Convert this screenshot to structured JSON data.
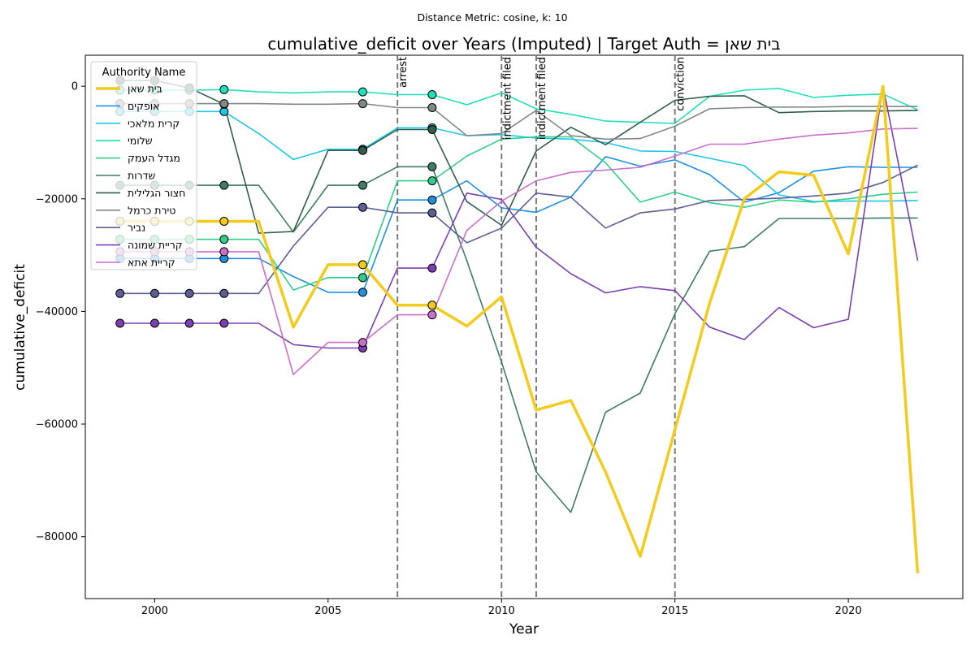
{
  "chart_data": {
    "type": "line",
    "suptitle": "Distance Metric: cosine, k: 10",
    "title": "cumulative_deficit over Years (Imputed) | Target Auth = בית שאן",
    "xlabel": "Year",
    "ylabel": "cumulative_deficit",
    "xlim": [
      1998,
      2023.3
    ],
    "ylim": [
      -91000,
      5500
    ],
    "xticks": [
      2000,
      2005,
      2010,
      2015,
      2020
    ],
    "yticks": [
      0,
      -20000,
      -40000,
      -60000,
      -80000
    ],
    "legend_title": "Authority Name",
    "legend_position": "top-left",
    "grid": false,
    "events": [
      {
        "year": 2007,
        "label": "arrest"
      },
      {
        "year": 2010,
        "label": "indictment filed"
      },
      {
        "year": 2011,
        "label": "indictment filed"
      },
      {
        "year": 2015,
        "label": "conviction"
      }
    ],
    "x": [
      1999,
      2000,
      2001,
      2002,
      2003,
      2004,
      2005,
      2006,
      2007,
      2008,
      2009,
      2010,
      2011,
      2012,
      2013,
      2014,
      2015,
      2016,
      2017,
      2018,
      2019,
      2020,
      2021,
      2022
    ],
    "series": [
      {
        "name": "בית שאן",
        "color": "#f2cb1d",
        "target": true,
        "values": [
          -24000,
          -24000,
          -24000,
          -24000,
          -24000,
          -42800,
          -31700,
          -31700,
          -38900,
          -38900,
          -42600,
          -37400,
          -57500,
          -55800,
          -68500,
          -83500,
          -61000,
          -38500,
          -20000,
          -15200,
          -15800,
          -29800,
          0,
          -86500
        ],
        "imputed": [
          0,
          1,
          2,
          3,
          7,
          9
        ]
      },
      {
        "name": "אופקים",
        "color": "#1f8fe0",
        "values": [
          -30600,
          -30600,
          -30600,
          -30600,
          -30600,
          -33800,
          -36600,
          -36600,
          -20200,
          -20200,
          -16800,
          -21600,
          -22400,
          -19700,
          -12500,
          -14200,
          -13100,
          -15700,
          -20600,
          -18900,
          -15100,
          -14300,
          -14400,
          -14400
        ],
        "imputed": [
          0,
          1,
          2,
          3,
          7,
          9
        ]
      },
      {
        "name": "קרית מלאכי",
        "color": "#1ec6ea",
        "values": [
          -4500,
          -4500,
          -4500,
          -4500,
          -8400,
          -13000,
          -11200,
          -11200,
          -7400,
          -7400,
          -8800,
          -8600,
          -9200,
          -9400,
          -10000,
          -11500,
          -11600,
          -12800,
          -14100,
          -19300,
          -20500,
          -20400,
          -20400,
          -20300
        ],
        "imputed": [
          0,
          1,
          2,
          3,
          7,
          9
        ]
      },
      {
        "name": "שלומי",
        "color": "#20e0bc",
        "values": [
          -700,
          -700,
          -700,
          -600,
          -1000,
          -1200,
          -1000,
          -1000,
          -1500,
          -1500,
          -3300,
          -1200,
          -4000,
          -5000,
          -6200,
          -6400,
          -6600,
          -1800,
          -700,
          -400,
          -2000,
          -1600,
          -1400,
          -4200
        ],
        "imputed": [
          0,
          1,
          2,
          3,
          7,
          9
        ]
      },
      {
        "name": "מגדל העמק",
        "color": "#2ecf8a",
        "values": [
          -27200,
          -27200,
          -27200,
          -27200,
          -27200,
          -36200,
          -34000,
          -34000,
          -16800,
          -16800,
          -12400,
          -9400,
          -9000,
          -9000,
          -13600,
          -20600,
          -18800,
          -20700,
          -21500,
          -20200,
          -20600,
          -20000,
          -19200,
          -18800
        ],
        "imputed": [
          0,
          1,
          2,
          3,
          7,
          9
        ]
      },
      {
        "name": "שדרות",
        "color": "#3e7d64",
        "values": [
          -17600,
          -17600,
          -17600,
          -17600,
          -17600,
          -25900,
          -17600,
          -17600,
          -14300,
          -14300,
          -31000,
          -49000,
          -68500,
          -75700,
          -57900,
          -54500,
          -40400,
          -29300,
          -28500,
          -23500,
          -23500,
          -23500,
          -23400,
          -23400
        ],
        "imputed": [
          0,
          1,
          2,
          3,
          7,
          9
        ]
      },
      {
        "name": "חצור הגלילית",
        "color": "#2f5e4b",
        "values": [
          1000,
          1000,
          -300,
          -3200,
          -26100,
          -25800,
          -11400,
          -11400,
          -7700,
          -7700,
          -20500,
          -24700,
          -11500,
          -7300,
          -10400,
          -6400,
          -2500,
          -1800,
          -1700,
          -4700,
          -4500,
          -4400,
          -4400,
          -4300
        ],
        "imputed": [
          0,
          1,
          2,
          3,
          7,
          9
        ]
      },
      {
        "name": "טירת כרמל",
        "color": "#818a86",
        "values": [
          -3100,
          -3100,
          -3100,
          -3100,
          -3100,
          -3200,
          -3200,
          -3100,
          -3800,
          -3800,
          -8800,
          -8400,
          -4300,
          -8800,
          -9400,
          -9300,
          -7100,
          -4000,
          -3800,
          -3700,
          -3700,
          -3600,
          -3600,
          -3600
        ],
        "imputed": [
          0,
          1,
          2,
          3,
          7,
          9
        ]
      },
      {
        "name": "נביר",
        "color": "#5c5e96",
        "values": [
          -36800,
          -36800,
          -36800,
          -36800,
          -36800,
          -28400,
          -21500,
          -21500,
          -22500,
          -22500,
          -27800,
          -25200,
          -19000,
          -19700,
          -25200,
          -22500,
          -21800,
          -20300,
          -20100,
          -19900,
          -19500,
          -19000,
          -17100,
          -14000
        ],
        "imputed": [
          0,
          1,
          2,
          3,
          7,
          9
        ]
      },
      {
        "name": "קריית שמונה",
        "color": "#7a40b0",
        "values": [
          -42100,
          -42100,
          -42100,
          -42100,
          -42100,
          -45900,
          -46500,
          -46500,
          -32300,
          -32300,
          -19000,
          -20100,
          -28600,
          -33300,
          -36700,
          -35600,
          -36300,
          -42800,
          -45000,
          -39300,
          -42900,
          -41400,
          0,
          -31000
        ],
        "imputed": [
          0,
          1,
          2,
          3,
          7,
          9
        ]
      },
      {
        "name": "קריית אתא",
        "color": "#c96fcc",
        "values": [
          -29400,
          -29400,
          -29400,
          -29400,
          -29400,
          -51200,
          -45500,
          -45500,
          -40600,
          -40600,
          -25600,
          -20400,
          -16800,
          -15300,
          -14900,
          -14400,
          -12400,
          -10300,
          -10300,
          -9400,
          -8700,
          -8300,
          -7600,
          -7500
        ],
        "imputed": [
          0,
          1,
          2,
          3,
          7,
          9
        ]
      }
    ]
  }
}
